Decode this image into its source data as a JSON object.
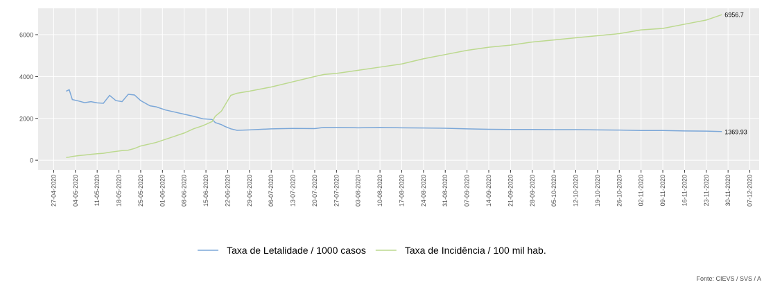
{
  "chart_data": {
    "type": "line",
    "x": [
      "01-05-2020",
      "02-05-2020",
      "03-05-2020",
      "05-05-2020",
      "07-05-2020",
      "09-05-2020",
      "11-05-2020",
      "13-05-2020",
      "15-05-2020",
      "17-05-2020",
      "19-05-2020",
      "21-05-2020",
      "23-05-2020",
      "25-05-2020",
      "28-05-2020",
      "30-05-2020",
      "02-06-2020",
      "05-06-2020",
      "08-06-2020",
      "11-06-2020",
      "14-06-2020",
      "17-06-2020",
      "18-06-2020",
      "20-06-2020",
      "21-06-2020",
      "23-06-2020",
      "25-06-2020",
      "29-06-2020",
      "06-07-2020",
      "13-07-2020",
      "20-07-2020",
      "23-07-2020",
      "27-07-2020",
      "03-08-2020",
      "10-08-2020",
      "17-08-2020",
      "24-08-2020",
      "31-08-2020",
      "07-09-2020",
      "14-09-2020",
      "21-09-2020",
      "28-09-2020",
      "05-10-2020",
      "12-10-2020",
      "19-10-2020",
      "26-10-2020",
      "02-11-2020",
      "09-11-2020",
      "16-11-2020",
      "23-11-2020",
      "28-11-2020"
    ],
    "series": [
      {
        "name": "Taxa de Letalidade / 1000 casos",
        "color": "#7ba7d8",
        "values": [
          3300,
          3370,
          2900,
          2830,
          2750,
          2800,
          2740,
          2720,
          3100,
          2850,
          2800,
          3150,
          3120,
          2850,
          2600,
          2550,
          2400,
          2300,
          2200,
          2100,
          1980,
          1950,
          1800,
          1700,
          1620,
          1500,
          1430,
          1450,
          1500,
          1520,
          1510,
          1570,
          1570,
          1550,
          1570,
          1550,
          1540,
          1530,
          1500,
          1480,
          1470,
          1470,
          1460,
          1460,
          1450,
          1440,
          1420,
          1420,
          1400,
          1390,
          1369.93
        ]
      },
      {
        "name": "Taxa de Incidência / 100 mil hab.",
        "color": "#bcd98e",
        "values": [
          130,
          150,
          180,
          220,
          250,
          280,
          310,
          330,
          380,
          420,
          460,
          480,
          560,
          680,
          780,
          850,
          1000,
          1150,
          1300,
          1500,
          1650,
          1850,
          2100,
          2350,
          2600,
          3100,
          3200,
          3300,
          3500,
          3750,
          4000,
          4100,
          4150,
          4300,
          4450,
          4600,
          4850,
          5050,
          5250,
          5400,
          5500,
          5650,
          5750,
          5850,
          5950,
          6050,
          6230,
          6300,
          6500,
          6700,
          6956.7
        ]
      }
    ],
    "xlim": [
      "22-04-2020",
      "10-12-2020"
    ],
    "xticks": [
      "27-04-2020",
      "04-05-2020",
      "11-05-2020",
      "18-05-2020",
      "25-05-2020",
      "01-06-2020",
      "08-06-2020",
      "15-06-2020",
      "22-06-2020",
      "29-06-2020",
      "06-07-2020",
      "13-07-2020",
      "20-07-2020",
      "27-07-2020",
      "03-08-2020",
      "10-08-2020",
      "17-08-2020",
      "24-08-2020",
      "31-08-2020",
      "07-09-2020",
      "14-09-2020",
      "21-09-2020",
      "28-09-2020",
      "05-10-2020",
      "12-10-2020",
      "19-10-2020",
      "26-10-2020",
      "02-11-2020",
      "09-11-2020",
      "16-11-2020",
      "23-11-2020",
      "30-11-2020",
      "07-12-2020"
    ],
    "ylim": [
      -460,
      7260
    ],
    "yticks": [
      0,
      2000,
      4000,
      6000
    ],
    "grid": true,
    "legend": "bottom",
    "source": "Fonte: CIEVS / SVS / A"
  }
}
